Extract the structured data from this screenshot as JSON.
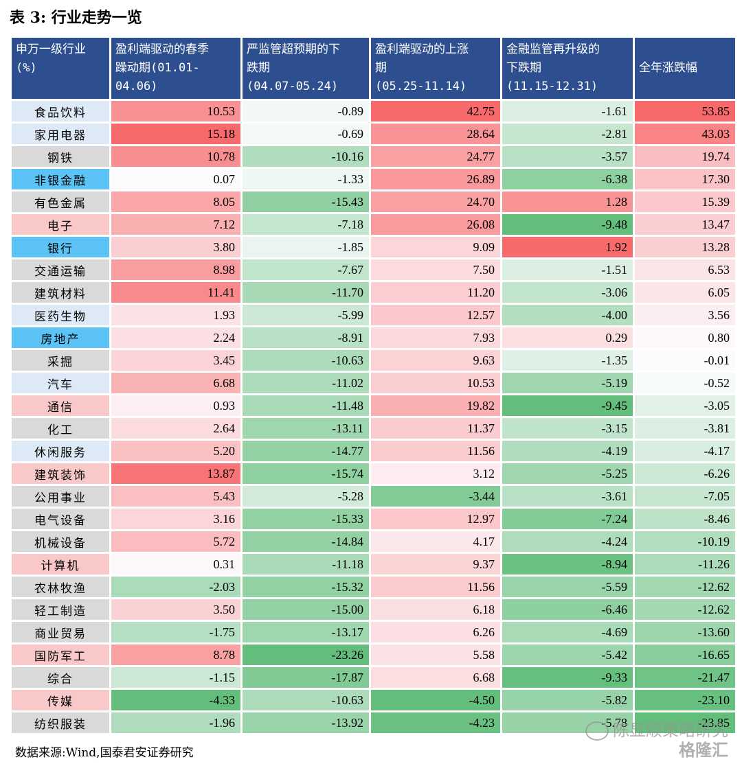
{
  "title": "表 3:  行业走势一览",
  "headers": [
    "申万一级行业\n(%)",
    "盈利端驱动的春季\n躁动期(01.01-\n04.06)",
    "严监管超预期的下\n跌期\n(04.07-05.24)",
    "盈利端驱动的上涨\n期\n(05.25-11.14)",
    "金融监管再升级的\n下跌期\n(11.15-12.31)",
    "全年涨跌幅"
  ],
  "rows": [
    {
      "name": "食品饮料",
      "values": [
        "10.53",
        "-0.89",
        "42.75",
        "-1.61",
        "53.85"
      ]
    },
    {
      "name": "家用电器",
      "values": [
        "15.18",
        "-0.69",
        "28.64",
        "-2.81",
        "43.03"
      ]
    },
    {
      "name": "钢铁",
      "values": [
        "10.78",
        "-10.16",
        "24.77",
        "-3.57",
        "19.74"
      ]
    },
    {
      "name": "非银金融",
      "values": [
        "0.07",
        "-1.33",
        "26.89",
        "-6.38",
        "17.30"
      ]
    },
    {
      "name": "有色金属",
      "values": [
        "8.05",
        "-15.43",
        "24.70",
        "1.28",
        "15.39"
      ]
    },
    {
      "name": "电子",
      "values": [
        "7.12",
        "-7.18",
        "26.08",
        "-9.48",
        "13.47"
      ]
    },
    {
      "name": "银行",
      "values": [
        "3.80",
        "-1.85",
        "9.09",
        "1.92",
        "13.28"
      ]
    },
    {
      "name": "交通运输",
      "values": [
        "8.98",
        "-7.67",
        "7.50",
        "-1.51",
        "6.53"
      ]
    },
    {
      "name": "建筑材料",
      "values": [
        "11.41",
        "-11.70",
        "11.20",
        "-3.06",
        "6.05"
      ]
    },
    {
      "name": "医药生物",
      "values": [
        "1.93",
        "-5.99",
        "12.57",
        "-4.00",
        "3.56"
      ]
    },
    {
      "name": "房地产",
      "values": [
        "2.24",
        "-8.91",
        "7.93",
        "0.29",
        "0.80"
      ]
    },
    {
      "name": "采掘",
      "values": [
        "3.45",
        "-10.63",
        "9.63",
        "-1.35",
        "-0.01"
      ]
    },
    {
      "name": "汽车",
      "values": [
        "6.68",
        "-11.02",
        "10.53",
        "-5.19",
        "-0.52"
      ]
    },
    {
      "name": "通信",
      "values": [
        "0.93",
        "-11.48",
        "19.82",
        "-9.45",
        "-3.05"
      ]
    },
    {
      "name": "化工",
      "values": [
        "2.64",
        "-13.11",
        "11.37",
        "-3.15",
        "-3.81"
      ]
    },
    {
      "name": "休闲服务",
      "values": [
        "5.20",
        "-14.77",
        "11.56",
        "-4.19",
        "-4.17"
      ]
    },
    {
      "name": "建筑装饰",
      "values": [
        "13.87",
        "-15.74",
        "3.12",
        "-5.25",
        "-6.26"
      ]
    },
    {
      "name": "公用事业",
      "values": [
        "5.43",
        "-5.28",
        "-3.44",
        "-3.61",
        "-7.05"
      ]
    },
    {
      "name": "电气设备",
      "values": [
        "3.16",
        "-15.33",
        "12.97",
        "-7.24",
        "-8.46"
      ]
    },
    {
      "name": "机械设备",
      "values": [
        "5.72",
        "-14.84",
        "4.17",
        "-4.24",
        "-10.19"
      ]
    },
    {
      "name": "计算机",
      "values": [
        "0.31",
        "-11.18",
        "9.37",
        "-8.94",
        "-11.26"
      ]
    },
    {
      "name": "农林牧渔",
      "values": [
        "-2.03",
        "-15.32",
        "11.56",
        "-5.59",
        "-12.62"
      ]
    },
    {
      "name": "轻工制造",
      "values": [
        "3.50",
        "-15.00",
        "6.18",
        "-6.46",
        "-12.62"
      ]
    },
    {
      "name": "商业贸易",
      "values": [
        "-1.75",
        "-13.17",
        "6.26",
        "-4.69",
        "-13.60"
      ]
    },
    {
      "name": "国防军工",
      "values": [
        "8.78",
        "-23.26",
        "5.58",
        "-5.42",
        "-16.65"
      ]
    },
    {
      "name": "综合",
      "values": [
        "-1.15",
        "-17.87",
        "6.68",
        "-9.33",
        "-21.47"
      ]
    },
    {
      "name": "传媒",
      "values": [
        "-4.33",
        "-10.63",
        "-4.50",
        "-5.82",
        "-23.10"
      ]
    },
    {
      "name": "纺织服装",
      "values": [
        "-1.96",
        "-13.92",
        "-4.23",
        "-5.78",
        "-23.85"
      ]
    }
  ],
  "industry_colors": {
    "blue": "#5bc3f5",
    "pink": "#f9c9c9",
    "gray": "#d9d9d9",
    "lightblue": "#dde9f6"
  },
  "industry_color_keys": [
    "lightblue",
    "lightblue",
    "gray",
    "blue",
    "gray",
    "pink",
    "blue",
    "gray",
    "gray",
    "lightblue",
    "blue",
    "gray",
    "lightblue",
    "pink",
    "gray",
    "lightblue",
    "pink",
    "gray",
    "gray",
    "gray",
    "pink",
    "gray",
    "gray",
    "gray",
    "pink",
    "gray",
    "pink",
    "gray"
  ],
  "heat_colors": {
    "positive": "#f8696b",
    "negative": "#63be7b",
    "neutral": "#fcfcff"
  },
  "header_color": "#2e4f8f",
  "footer": "数据来源:Wind,国泰君安证券研究",
  "watermark": {
    "account": "陈显顺策略研究",
    "logo": "格隆汇"
  }
}
